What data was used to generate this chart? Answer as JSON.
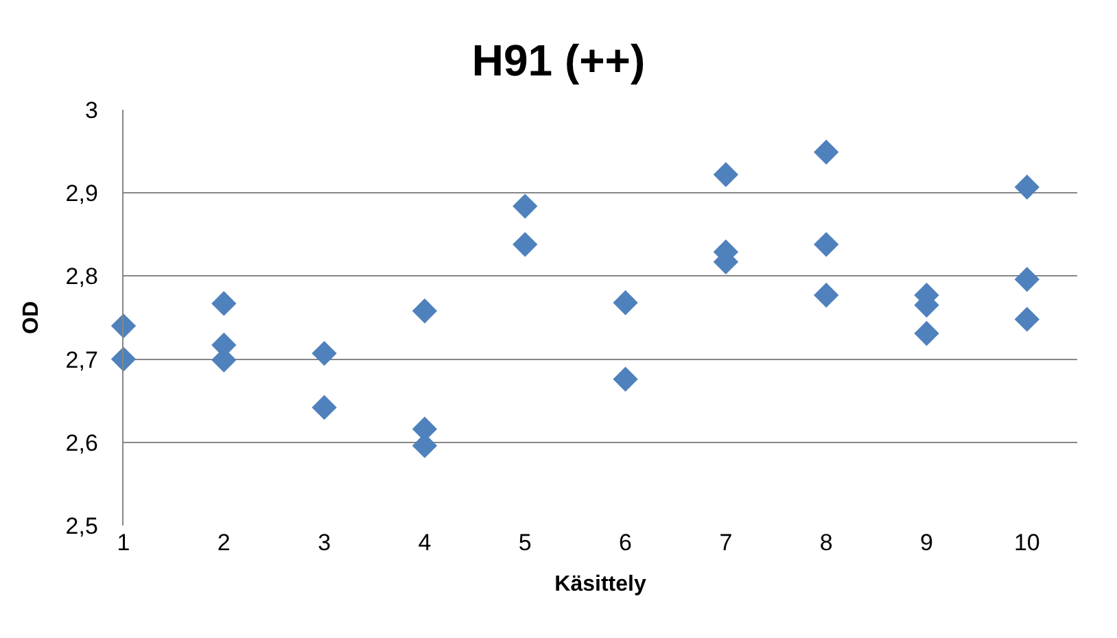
{
  "chart_data": {
    "type": "scatter",
    "title": "H91 (++)",
    "xlabel": "Käsittely",
    "ylabel": "OD",
    "x": [
      1,
      1,
      2,
      2,
      2,
      3,
      3,
      4,
      4,
      4,
      5,
      5,
      6,
      6,
      7,
      7,
      7,
      8,
      8,
      8,
      9,
      9,
      9,
      10,
      10,
      10
    ],
    "values": [
      2.74,
      2.7,
      2.767,
      2.717,
      2.699,
      2.707,
      2.642,
      2.758,
      2.616,
      2.596,
      2.884,
      2.838,
      2.768,
      2.676,
      2.922,
      2.829,
      2.817,
      2.949,
      2.838,
      2.777,
      2.777,
      2.765,
      2.731,
      2.907,
      2.796,
      2.748
    ],
    "color": "#4f81bd",
    "marker": "diamond",
    "xlim": [
      1,
      10.5
    ],
    "xticks": [
      1,
      2,
      3,
      4,
      5,
      6,
      7,
      8,
      9,
      10
    ],
    "ylim": [
      2.5,
      3
    ],
    "yticks": [
      {
        "value": 2.5,
        "label": "2,5"
      },
      {
        "value": 2.6,
        "label": "2,6"
      },
      {
        "value": 2.7,
        "label": "2,7"
      },
      {
        "value": 2.8,
        "label": "2,8"
      },
      {
        "value": 2.9,
        "label": "2,9"
      },
      {
        "value": 3,
        "label": "3"
      }
    ],
    "grid": "y"
  }
}
